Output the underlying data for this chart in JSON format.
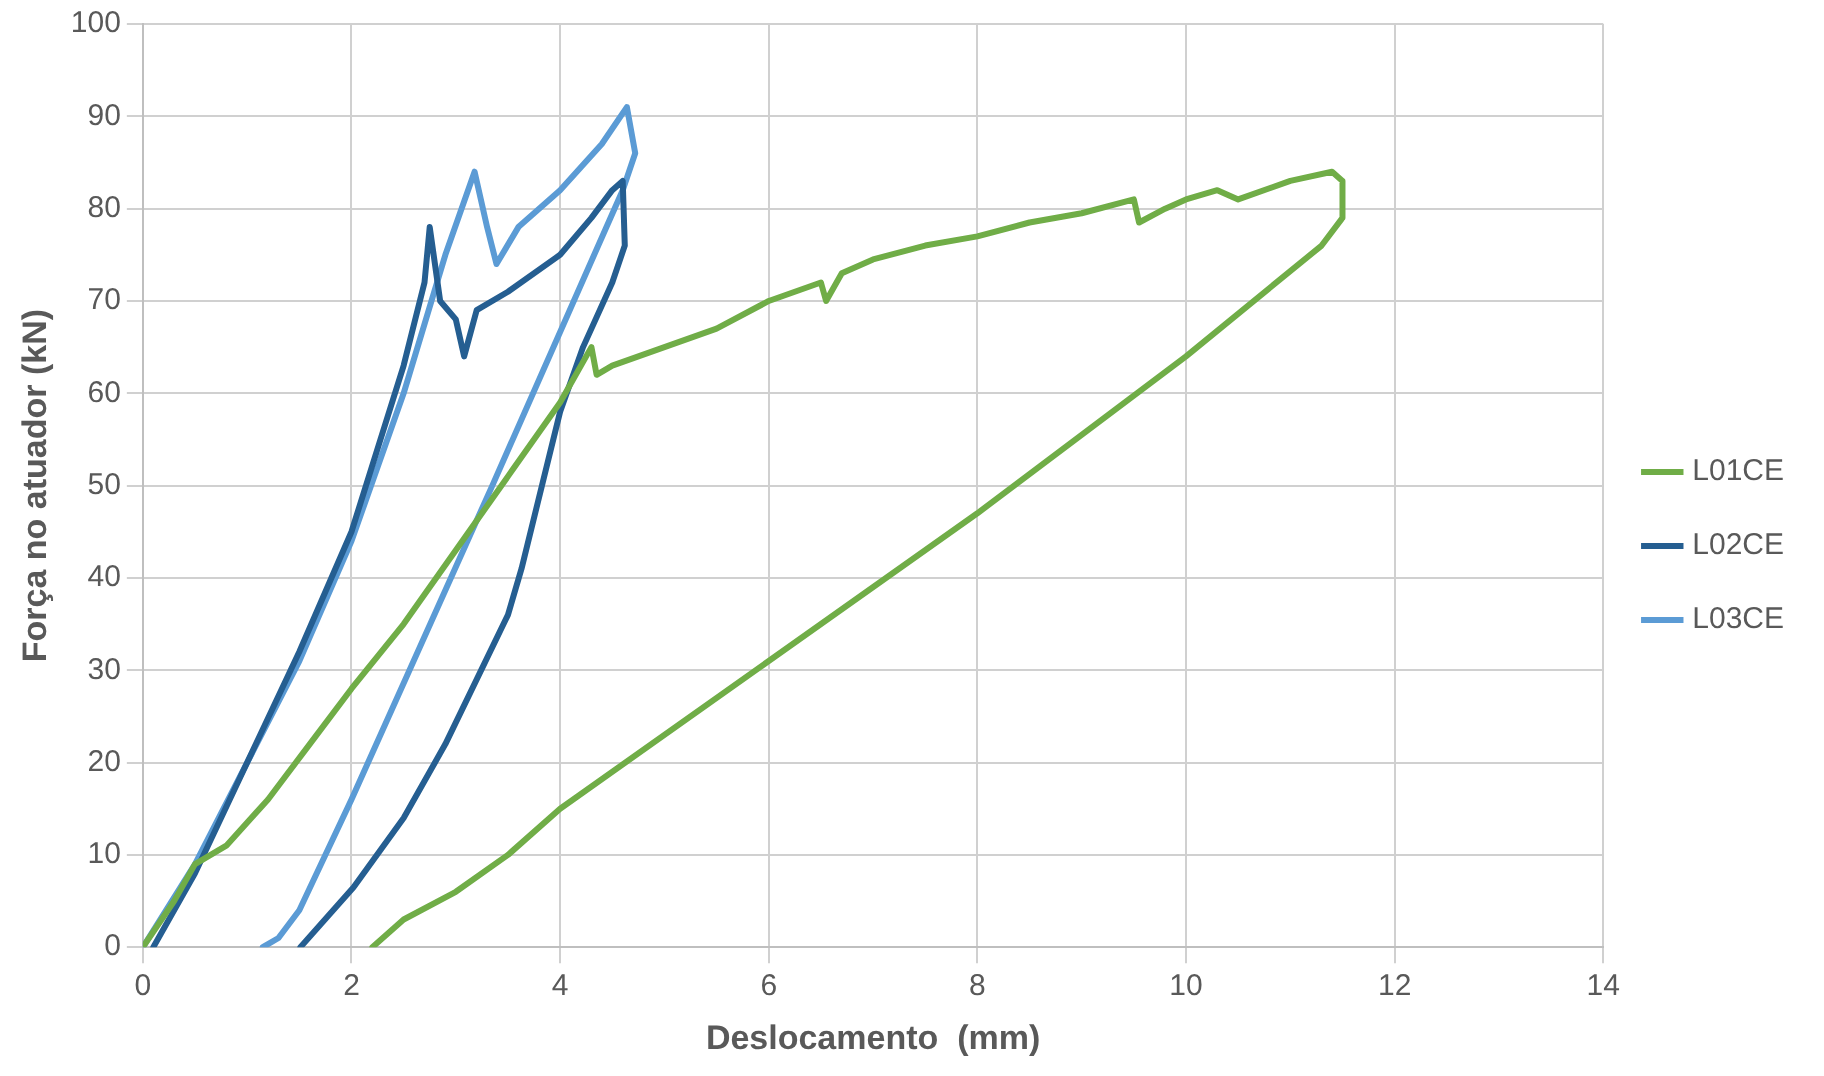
{
  "chart_data": {
    "type": "line",
    "xlabel": "Deslocamento  (mm)",
    "ylabel": "Força no atuador (kN)",
    "xlim": [
      0,
      14
    ],
    "xticks": [
      0,
      2,
      4,
      6,
      8,
      10,
      12,
      14
    ],
    "ylim": [
      0,
      100
    ],
    "yticks": [
      0,
      10,
      20,
      30,
      40,
      50,
      60,
      70,
      80,
      90,
      100
    ],
    "grid": true,
    "legend": "right",
    "marker": "none",
    "line_style": "solid",
    "series": [
      {
        "name": "L01CE",
        "color": "#70ad47",
        "x": [
          0,
          0.3,
          0.5,
          0.8,
          1.2,
          1.6,
          2,
          2.5,
          3,
          3.5,
          4,
          4.3,
          4.35,
          4.5,
          5,
          5.5,
          6,
          6.5,
          6.55,
          6.7,
          7,
          7.5,
          8,
          8.5,
          9,
          9.5,
          9.55,
          9.8,
          10,
          10.3,
          10.5,
          11,
          11.4,
          11.5,
          11.5,
          11.3,
          10,
          8,
          6,
          4,
          3.5,
          3,
          2.5,
          2.2
        ],
        "values": [
          0,
          5,
          9,
          11,
          16,
          22,
          28,
          35,
          43,
          51,
          59,
          65,
          62,
          63,
          65,
          67,
          70,
          72,
          70,
          73,
          74.5,
          76,
          77,
          78.5,
          79.5,
          81,
          78.5,
          80,
          81,
          82,
          81,
          83,
          84,
          83,
          79,
          76,
          64,
          47,
          31,
          15,
          10,
          6,
          3,
          0
        ]
      },
      {
        "name": "L02CE",
        "color": "#255e91",
        "x": [
          0.1,
          0.5,
          1,
          1.5,
          2,
          2.5,
          2.7,
          2.75,
          2.85,
          3,
          3.08,
          3.2,
          3.5,
          4,
          4.3,
          4.5,
          4.6,
          4.62,
          4.5,
          4.22,
          4,
          3.63,
          3.5,
          2.9,
          2.5,
          2.02,
          1.51
        ],
        "values": [
          0,
          8,
          20,
          32,
          45,
          63,
          72,
          78,
          70,
          68,
          64,
          69,
          71,
          75,
          79,
          82,
          83,
          76,
          72,
          65,
          58,
          41,
          36,
          22,
          14,
          6.5,
          0
        ]
      },
      {
        "name": "L03CE",
        "color": "#5b9bd5",
        "x": [
          0,
          0.5,
          1,
          1.5,
          2,
          2.5,
          2.9,
          3.18,
          3.3,
          3.39,
          3.6,
          4,
          4.4,
          4.64,
          4.72,
          4.6,
          3.35,
          2,
          1.5,
          1.3,
          1.15
        ],
        "values": [
          0,
          9,
          20,
          31,
          44,
          60,
          75,
          84,
          78,
          74,
          78,
          82,
          87,
          91,
          86,
          82,
          50,
          16,
          4,
          1,
          0
        ]
      }
    ]
  }
}
